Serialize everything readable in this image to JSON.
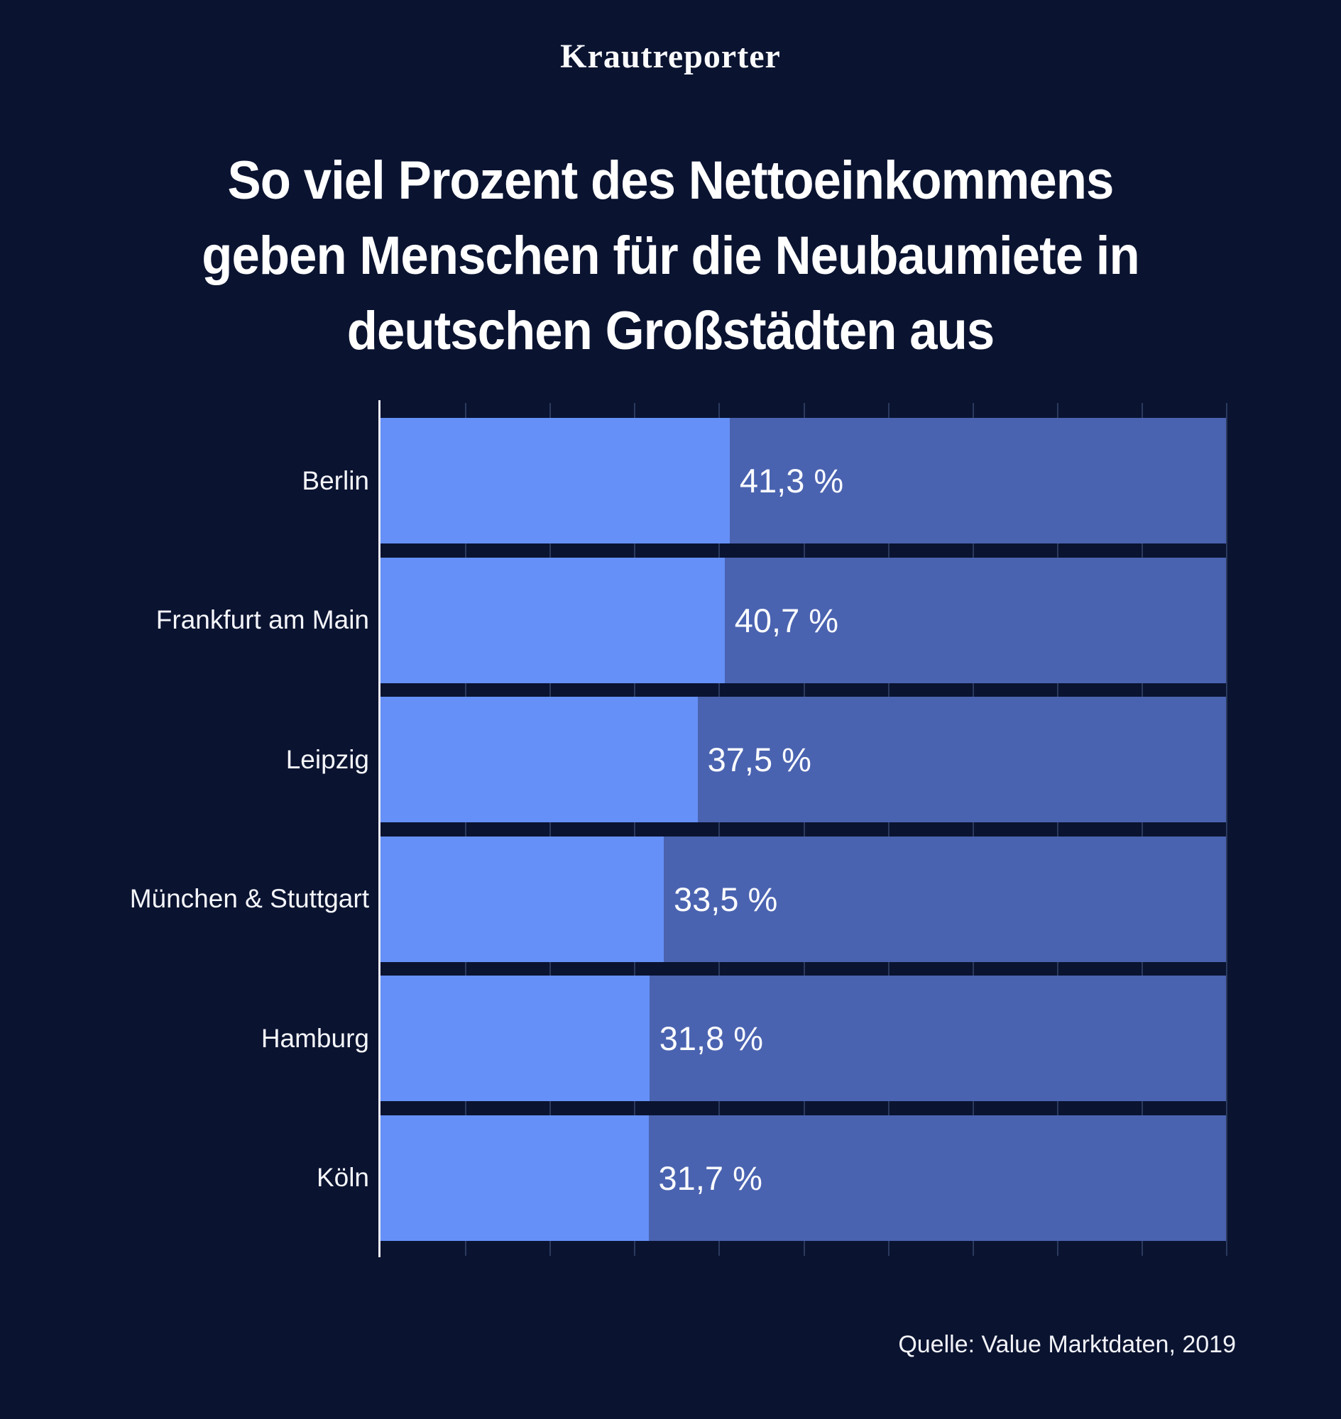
{
  "brand": "Krautreporter",
  "title_lines": [
    "So viel Prozent des Nettoeinkommens",
    "geben Menschen für die Neubaumiete in",
    "deutschen Großstädten aus"
  ],
  "source": "Quelle: Value Marktdaten, 2019",
  "chart_data": {
    "type": "bar",
    "orientation": "horizontal",
    "title": "So viel Prozent des Nettoeinkommens geben Menschen für die Neubaumiete in deutschen Großstädten aus",
    "categories": [
      "Berlin",
      "Frankfurt am Main",
      "Leipzig",
      "München & Stuttgart",
      "Hamburg",
      "Köln"
    ],
    "values": [
      41.3,
      40.7,
      37.5,
      33.5,
      31.8,
      31.7
    ],
    "value_labels": [
      "41,3 %",
      "40,7 %",
      "37,5 %",
      "33,5 %",
      "31,8 %",
      "31,7 %"
    ],
    "unit": "%",
    "xlabel": "",
    "ylabel": "",
    "xlim": [
      0,
      100
    ],
    "tick_interval": 10,
    "grid": true,
    "legend": false,
    "track_represents": "100 % des Nettoeinkommens",
    "colors": {
      "background": "#0a1330",
      "bar": "#6590f7",
      "track": "#4a63b0",
      "gridline": "#2b3a5e",
      "axis": "#e9ebf2",
      "text": "#ffffff"
    }
  }
}
